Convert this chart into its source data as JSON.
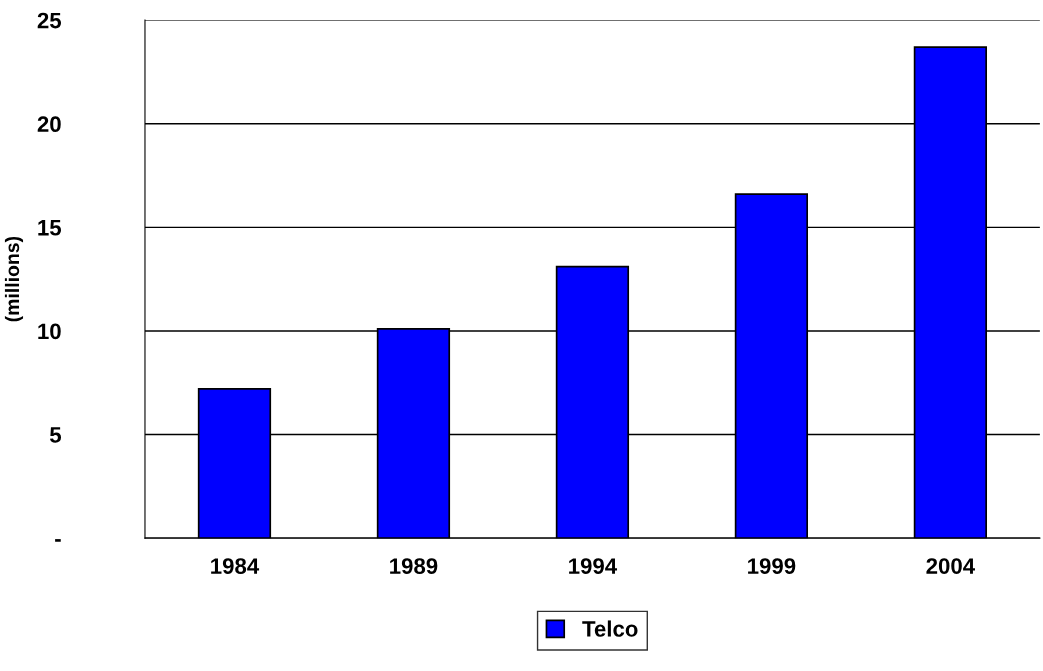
{
  "chart_data": {
    "type": "bar",
    "ylabel": "(millions)",
    "categories": [
      "1984",
      "1989",
      "1994",
      "1999",
      "2004"
    ],
    "series": [
      {
        "name": "Telco",
        "color": "#0000ff",
        "values": [
          7.2,
          10.1,
          13.1,
          16.6,
          23.7
        ]
      }
    ],
    "ylim": [
      0,
      25
    ],
    "yticks": [
      {
        "value": 0,
        "label": "-"
      },
      5,
      10,
      15,
      20,
      25
    ],
    "grid": "y",
    "legend": "bottom"
  }
}
